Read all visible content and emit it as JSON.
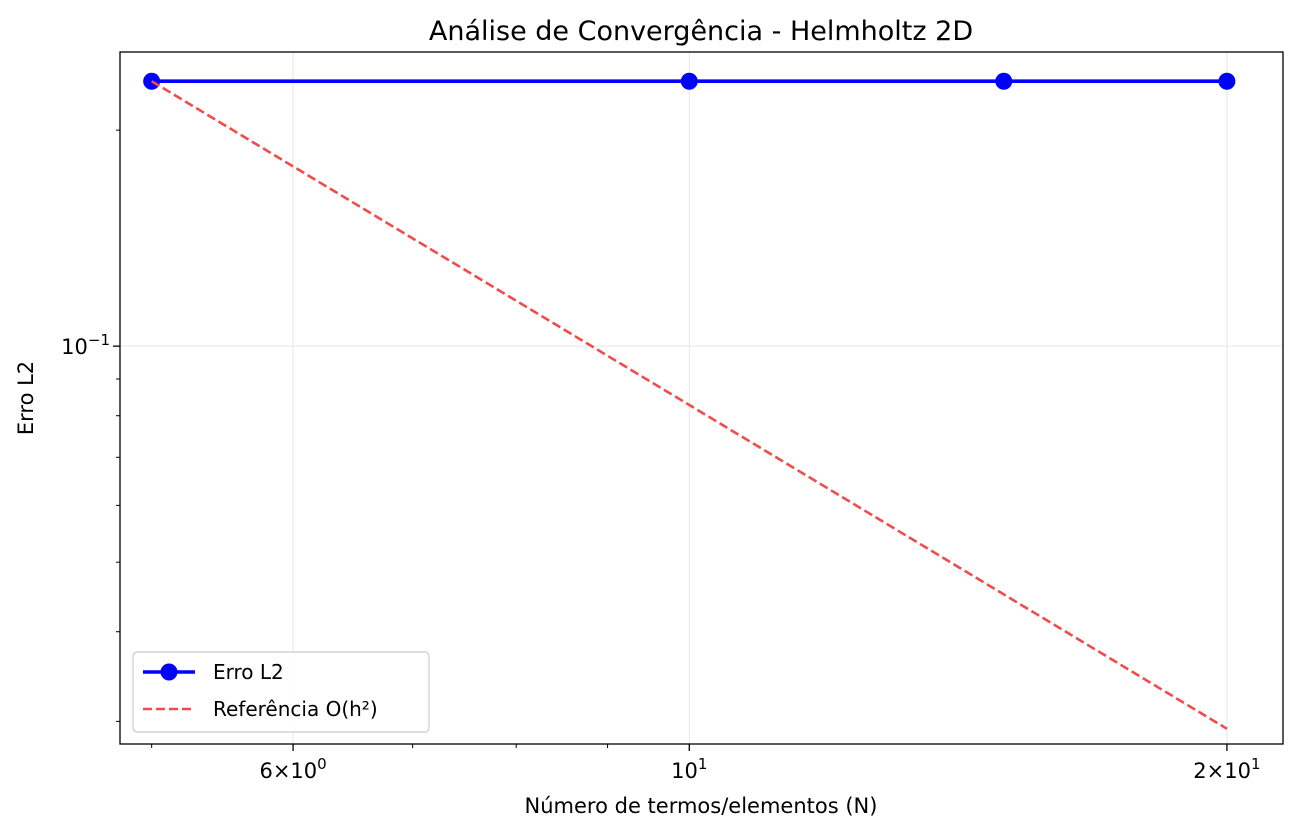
{
  "chart_data": {
    "type": "line",
    "title": "Análise de Convergência - Helmholtz 2D",
    "xlabel": "Número de termos/elementos (N)",
    "ylabel": "Erro L2",
    "x_scale": "log",
    "y_scale": "log",
    "xlim": [
      4.8,
      21.5
    ],
    "ylim": [
      0.0279,
      0.257
    ],
    "x_ticks": [
      {
        "value": 6,
        "base": "6",
        "mult": "×10",
        "exp": "0"
      },
      {
        "value": 10,
        "base": "10",
        "mult": "",
        "exp": "1"
      },
      {
        "value": 20,
        "base": "2",
        "mult": "×10",
        "exp": "1"
      }
    ],
    "x_minor_ticks": [
      5,
      7,
      8,
      9
    ],
    "y_ticks": [
      {
        "value": 0.1,
        "base": "10",
        "exp": "−1"
      }
    ],
    "y_minor_ticks": [
      0.03,
      0.04,
      0.05,
      0.06,
      0.07,
      0.08,
      0.09,
      0.2
    ],
    "grid": true,
    "legend_position": "lower-left",
    "series": [
      {
        "name": "Erro L2",
        "color": "#0000ff",
        "style": "solid",
        "marker": "circle",
        "x": [
          5,
          10,
          15,
          20
        ],
        "y": [
          0.234,
          0.234,
          0.234,
          0.234
        ]
      },
      {
        "name": "Referência O(h²)",
        "color": "#f24b4b",
        "style": "dashed",
        "marker": "none",
        "x": [
          5,
          20
        ],
        "y": [
          0.234,
          0.0293
        ]
      }
    ]
  }
}
